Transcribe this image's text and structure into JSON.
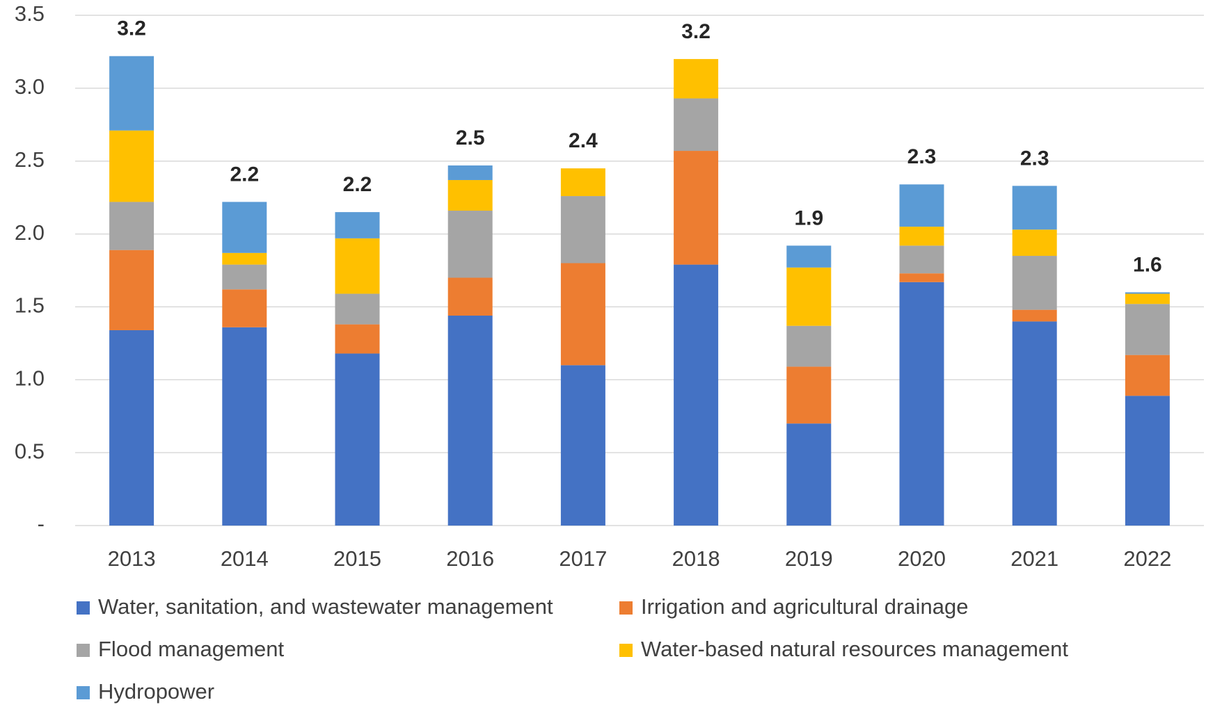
{
  "chart_data": {
    "type": "stacked_bar",
    "categories": [
      "2013",
      "2014",
      "2015",
      "2016",
      "2017",
      "2018",
      "2019",
      "2020",
      "2021",
      "2022"
    ],
    "series": [
      {
        "name": "Water, sanitation, and wastewater management",
        "color": "#4472c4",
        "values": [
          1.34,
          1.36,
          1.18,
          1.44,
          1.1,
          1.79,
          0.7,
          1.67,
          1.4,
          0.89
        ]
      },
      {
        "name": "Irrigation and agricultural drainage",
        "color": "#ed7d31",
        "values": [
          0.55,
          0.26,
          0.2,
          0.26,
          0.7,
          0.78,
          0.39,
          0.06,
          0.08,
          0.28
        ]
      },
      {
        "name": "Flood management",
        "color": "#a5a5a5",
        "values": [
          0.33,
          0.17,
          0.21,
          0.46,
          0.46,
          0.36,
          0.28,
          0.19,
          0.37,
          0.35
        ]
      },
      {
        "name": "Water-based natural resources management",
        "color": "#ffc000",
        "values": [
          0.49,
          0.08,
          0.38,
          0.21,
          0.19,
          0.27,
          0.4,
          0.13,
          0.18,
          0.07
        ]
      },
      {
        "name": "Hydropower",
        "color": "#5b9bd5",
        "values": [
          0.51,
          0.35,
          0.18,
          0.1,
          0,
          0,
          0.15,
          0.29,
          0.3,
          0.01
        ]
      }
    ],
    "totals": [
      3.2,
      2.2,
      2.2,
      2.5,
      2.4,
      3.2,
      1.9,
      2.3,
      2.3,
      1.6
    ],
    "ylim": [
      0,
      3.5
    ],
    "yticks": [
      {
        "value": 0,
        "label": "-"
      },
      0.5,
      {
        "value": 1,
        "label": "1.0"
      },
      1.5,
      {
        "value": 2,
        "label": "2.0"
      },
      2.5,
      {
        "value": 3,
        "label": "3.0"
      },
      3.5
    ],
    "grid": true,
    "legend": "bottom"
  }
}
